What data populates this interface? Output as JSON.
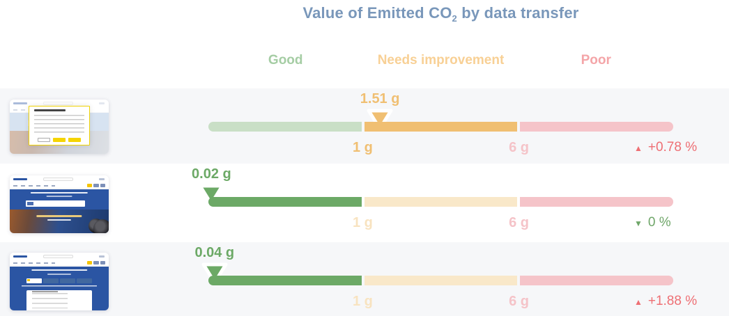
{
  "title": {
    "text": "Value of Emitted CO",
    "subscript": "2",
    "suffix": " by data transfer"
  },
  "legend": {
    "good": "Good",
    "needs_improvement": "Needs improvement",
    "poor": "Poor"
  },
  "colors": {
    "title_blue": "#7997ba",
    "good_active": "#6ca966",
    "good_faded": "#c9dfc6",
    "good_label": "#a5cda4",
    "warn_active": "#f0bf72",
    "warn_faded": "#f9e8c9",
    "warn_label": "#f8d095",
    "poor_faded": "#f5c4c9",
    "poor_label": "#f4a5a8",
    "trend_up_red": "#ee6f74",
    "trend_down_green": "#6fa669",
    "row_stripe": "#f6f7f9"
  },
  "chart_data": {
    "type": "bullet-gauge",
    "title": "Value of Emitted CO2 by data transfer",
    "unit": "g",
    "zones": [
      {
        "label": "Good",
        "range_g": [
          0,
          1
        ]
      },
      {
        "label": "Needs improvement",
        "range_g": [
          1,
          6
        ]
      },
      {
        "label": "Poor",
        "range_g": [
          6,
          null
        ]
      }
    ],
    "tick_labels": [
      "1 g",
      "6 g"
    ],
    "rows": [
      {
        "value_g": 1.51,
        "zone": "Needs improvement",
        "change_pct": "+0.78 %",
        "trend": "up"
      },
      {
        "value_g": 0.02,
        "zone": "Good",
        "change_pct": "0 %",
        "trend": "down"
      },
      {
        "value_g": 0.04,
        "zone": "Good",
        "change_pct": "+1.88 %",
        "trend": "up"
      }
    ]
  },
  "rows": [
    {
      "value_label": "1.51 g",
      "marker_left_pct": 36.9,
      "tick1": "1 g",
      "tick2": "6 g",
      "trend_icon": "▲",
      "change_text": "+0.78 %"
    },
    {
      "value_label": "0.02 g",
      "marker_left_pct": 0.66,
      "tick1": "1 g",
      "tick2": "6 g",
      "trend_icon": "▼",
      "change_text": "0 %"
    },
    {
      "value_label": "0.04 g",
      "marker_left_pct": 1.32,
      "tick1": "1 g",
      "tick2": "6 g",
      "trend_icon": "▲",
      "change_text": "+1.88 %"
    }
  ]
}
